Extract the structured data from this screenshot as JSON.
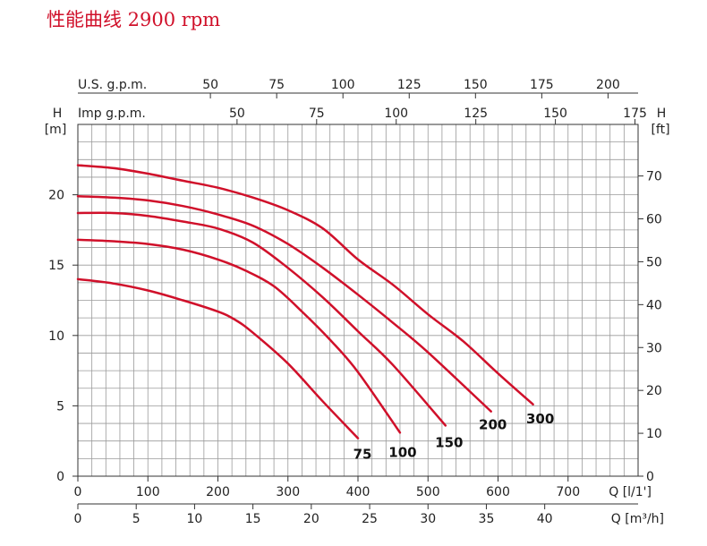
{
  "title": "性能曲线 2900 rpm",
  "colors": {
    "curve": "#d0102a",
    "grid": "#9a9a9a",
    "axis": "#333333",
    "title": "#d0102a"
  },
  "chart_data": {
    "type": "line",
    "title": "性能曲线 2900 rpm",
    "grid": true,
    "x_axis_bottom_1": {
      "label": "Q [l/1']",
      "range": [
        0,
        800
      ],
      "ticks": [
        0,
        100,
        200,
        300,
        400,
        500,
        600,
        700
      ]
    },
    "x_axis_bottom_2": {
      "label": "Q [m³/h]",
      "range": [
        0,
        48
      ],
      "ticks": [
        0,
        5,
        10,
        15,
        20,
        25,
        30,
        35,
        40
      ]
    },
    "x_axis_top_1": {
      "label": "U.S. g.p.m.",
      "ticks": [
        50,
        75,
        100,
        125,
        150,
        175,
        200
      ]
    },
    "x_axis_top_2": {
      "label": "Imp g.p.m.",
      "ticks": [
        50,
        75,
        100,
        125,
        150,
        175
      ]
    },
    "y_axis_left": {
      "label_top": "H",
      "label_unit": "[m]",
      "range": [
        0,
        25
      ],
      "ticks": [
        0,
        5,
        10,
        15,
        20
      ]
    },
    "y_axis_right": {
      "label_top": "H",
      "label_unit": "[ft]",
      "ticks": [
        0,
        10,
        20,
        30,
        40,
        50,
        60,
        70
      ]
    },
    "series": [
      {
        "name": "75",
        "x": [
          0,
          50,
          100,
          150,
          200,
          225,
          250,
          300,
          350,
          400
        ],
        "y": [
          14,
          13.7,
          13.2,
          12.5,
          11.7,
          11.1,
          10.2,
          8.0,
          5.3,
          2.7
        ]
      },
      {
        "name": "100",
        "x": [
          0,
          50,
          100,
          150,
          200,
          240,
          280,
          320,
          360,
          400,
          460
        ],
        "y": [
          16.8,
          16.7,
          16.5,
          16.1,
          15.4,
          14.6,
          13.5,
          11.7,
          9.7,
          7.4,
          3.1
        ]
      },
      {
        "name": "150",
        "x": [
          0,
          50,
          100,
          150,
          200,
          250,
          300,
          350,
          400,
          450,
          525
        ],
        "y": [
          18.7,
          18.7,
          18.5,
          18.1,
          17.6,
          16.6,
          14.8,
          12.7,
          10.3,
          7.9,
          3.6
        ]
      },
      {
        "name": "200",
        "x": [
          0,
          50,
          100,
          150,
          200,
          250,
          300,
          350,
          400,
          450,
          500,
          590
        ],
        "y": [
          19.9,
          19.8,
          19.6,
          19.2,
          18.6,
          17.8,
          16.5,
          14.8,
          12.9,
          10.9,
          8.8,
          4.6
        ]
      },
      {
        "name": "300",
        "x": [
          0,
          50,
          100,
          150,
          200,
          250,
          300,
          350,
          400,
          450,
          500,
          550,
          600,
          650
        ],
        "y": [
          22.1,
          21.9,
          21.5,
          21.0,
          20.5,
          19.8,
          18.9,
          17.6,
          15.4,
          13.6,
          11.5,
          9.6,
          7.3,
          5.1
        ]
      }
    ]
  }
}
